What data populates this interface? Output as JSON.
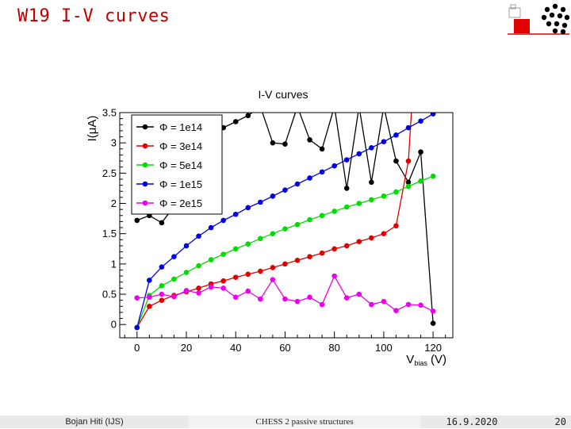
{
  "slide": {
    "title": "W19 I-V curves",
    "footer_author": "Bojan Hiti (IJS)",
    "footer_event": "CHESS 2 passive structures",
    "footer_date": "16.9.2020",
    "footer_page": "20"
  },
  "logo": {
    "icon": "institute-logo-icon",
    "color": "#e00000"
  },
  "chart_data": {
    "type": "line",
    "title": "I-V curves",
    "xlabel": "V_bias (V)",
    "ylabel": "I(μA)",
    "xlim": [
      -7,
      128
    ],
    "ylim": [
      -0.22,
      3.5
    ],
    "xticks": [
      0,
      20,
      40,
      60,
      80,
      100,
      120
    ],
    "yticks": [
      0,
      0.5,
      1,
      1.5,
      2,
      2.5,
      3,
      3.5
    ],
    "grid": false,
    "legend_position": "top-left",
    "x": [
      0,
      5,
      10,
      15,
      20,
      25,
      30,
      35,
      40,
      45,
      50,
      55,
      60,
      65,
      70,
      75,
      80,
      85,
      90,
      95,
      100,
      105,
      110,
      115,
      120
    ],
    "series": [
      {
        "name": "Φ = 1e14",
        "color": "#000000",
        "values": [
          1.72,
          1.8,
          1.68,
          1.95,
          2.2,
          2.55,
          3.2,
          3.25,
          3.35,
          3.45,
          3.6,
          3.0,
          2.98,
          3.6,
          3.05,
          2.9,
          3.6,
          2.25,
          3.6,
          2.35,
          3.6,
          2.7,
          2.35,
          2.85,
          0.02
        ]
      },
      {
        "name": "Φ = 3e14",
        "color": "#e00000",
        "values": [
          -0.05,
          0.3,
          0.4,
          0.48,
          0.54,
          0.6,
          0.67,
          0.72,
          0.78,
          0.83,
          0.88,
          0.94,
          1.0,
          1.06,
          1.12,
          1.18,
          1.25,
          1.3,
          1.37,
          1.43,
          1.5,
          1.63,
          2.7,
          null,
          null
        ]
      },
      {
        "name": "Φ = 5e14",
        "color": "#00dd00",
        "values": [
          -0.05,
          0.48,
          0.64,
          0.75,
          0.86,
          0.97,
          1.07,
          1.16,
          1.25,
          1.33,
          1.42,
          1.5,
          1.58,
          1.65,
          1.73,
          1.8,
          1.87,
          1.94,
          2.0,
          2.06,
          2.12,
          2.19,
          2.28,
          2.37,
          2.45
        ]
      },
      {
        "name": "Φ = 1e15",
        "color": "#0000e0",
        "values": [
          -0.05,
          0.73,
          0.95,
          1.12,
          1.3,
          1.46,
          1.6,
          1.72,
          1.82,
          1.93,
          2.02,
          2.12,
          2.22,
          2.32,
          2.42,
          2.52,
          2.62,
          2.72,
          2.82,
          2.92,
          3.02,
          3.13,
          3.25,
          3.36,
          3.48
        ]
      },
      {
        "name": "Φ = 2e15",
        "color": "#ee00ee",
        "values": [
          0.44,
          0.45,
          0.5,
          0.46,
          0.56,
          0.52,
          0.62,
          0.6,
          0.45,
          0.55,
          0.42,
          0.74,
          0.42,
          0.38,
          0.45,
          0.33,
          0.8,
          0.44,
          0.5,
          0.33,
          0.38,
          0.23,
          0.33,
          0.32,
          0.22
        ]
      }
    ]
  }
}
